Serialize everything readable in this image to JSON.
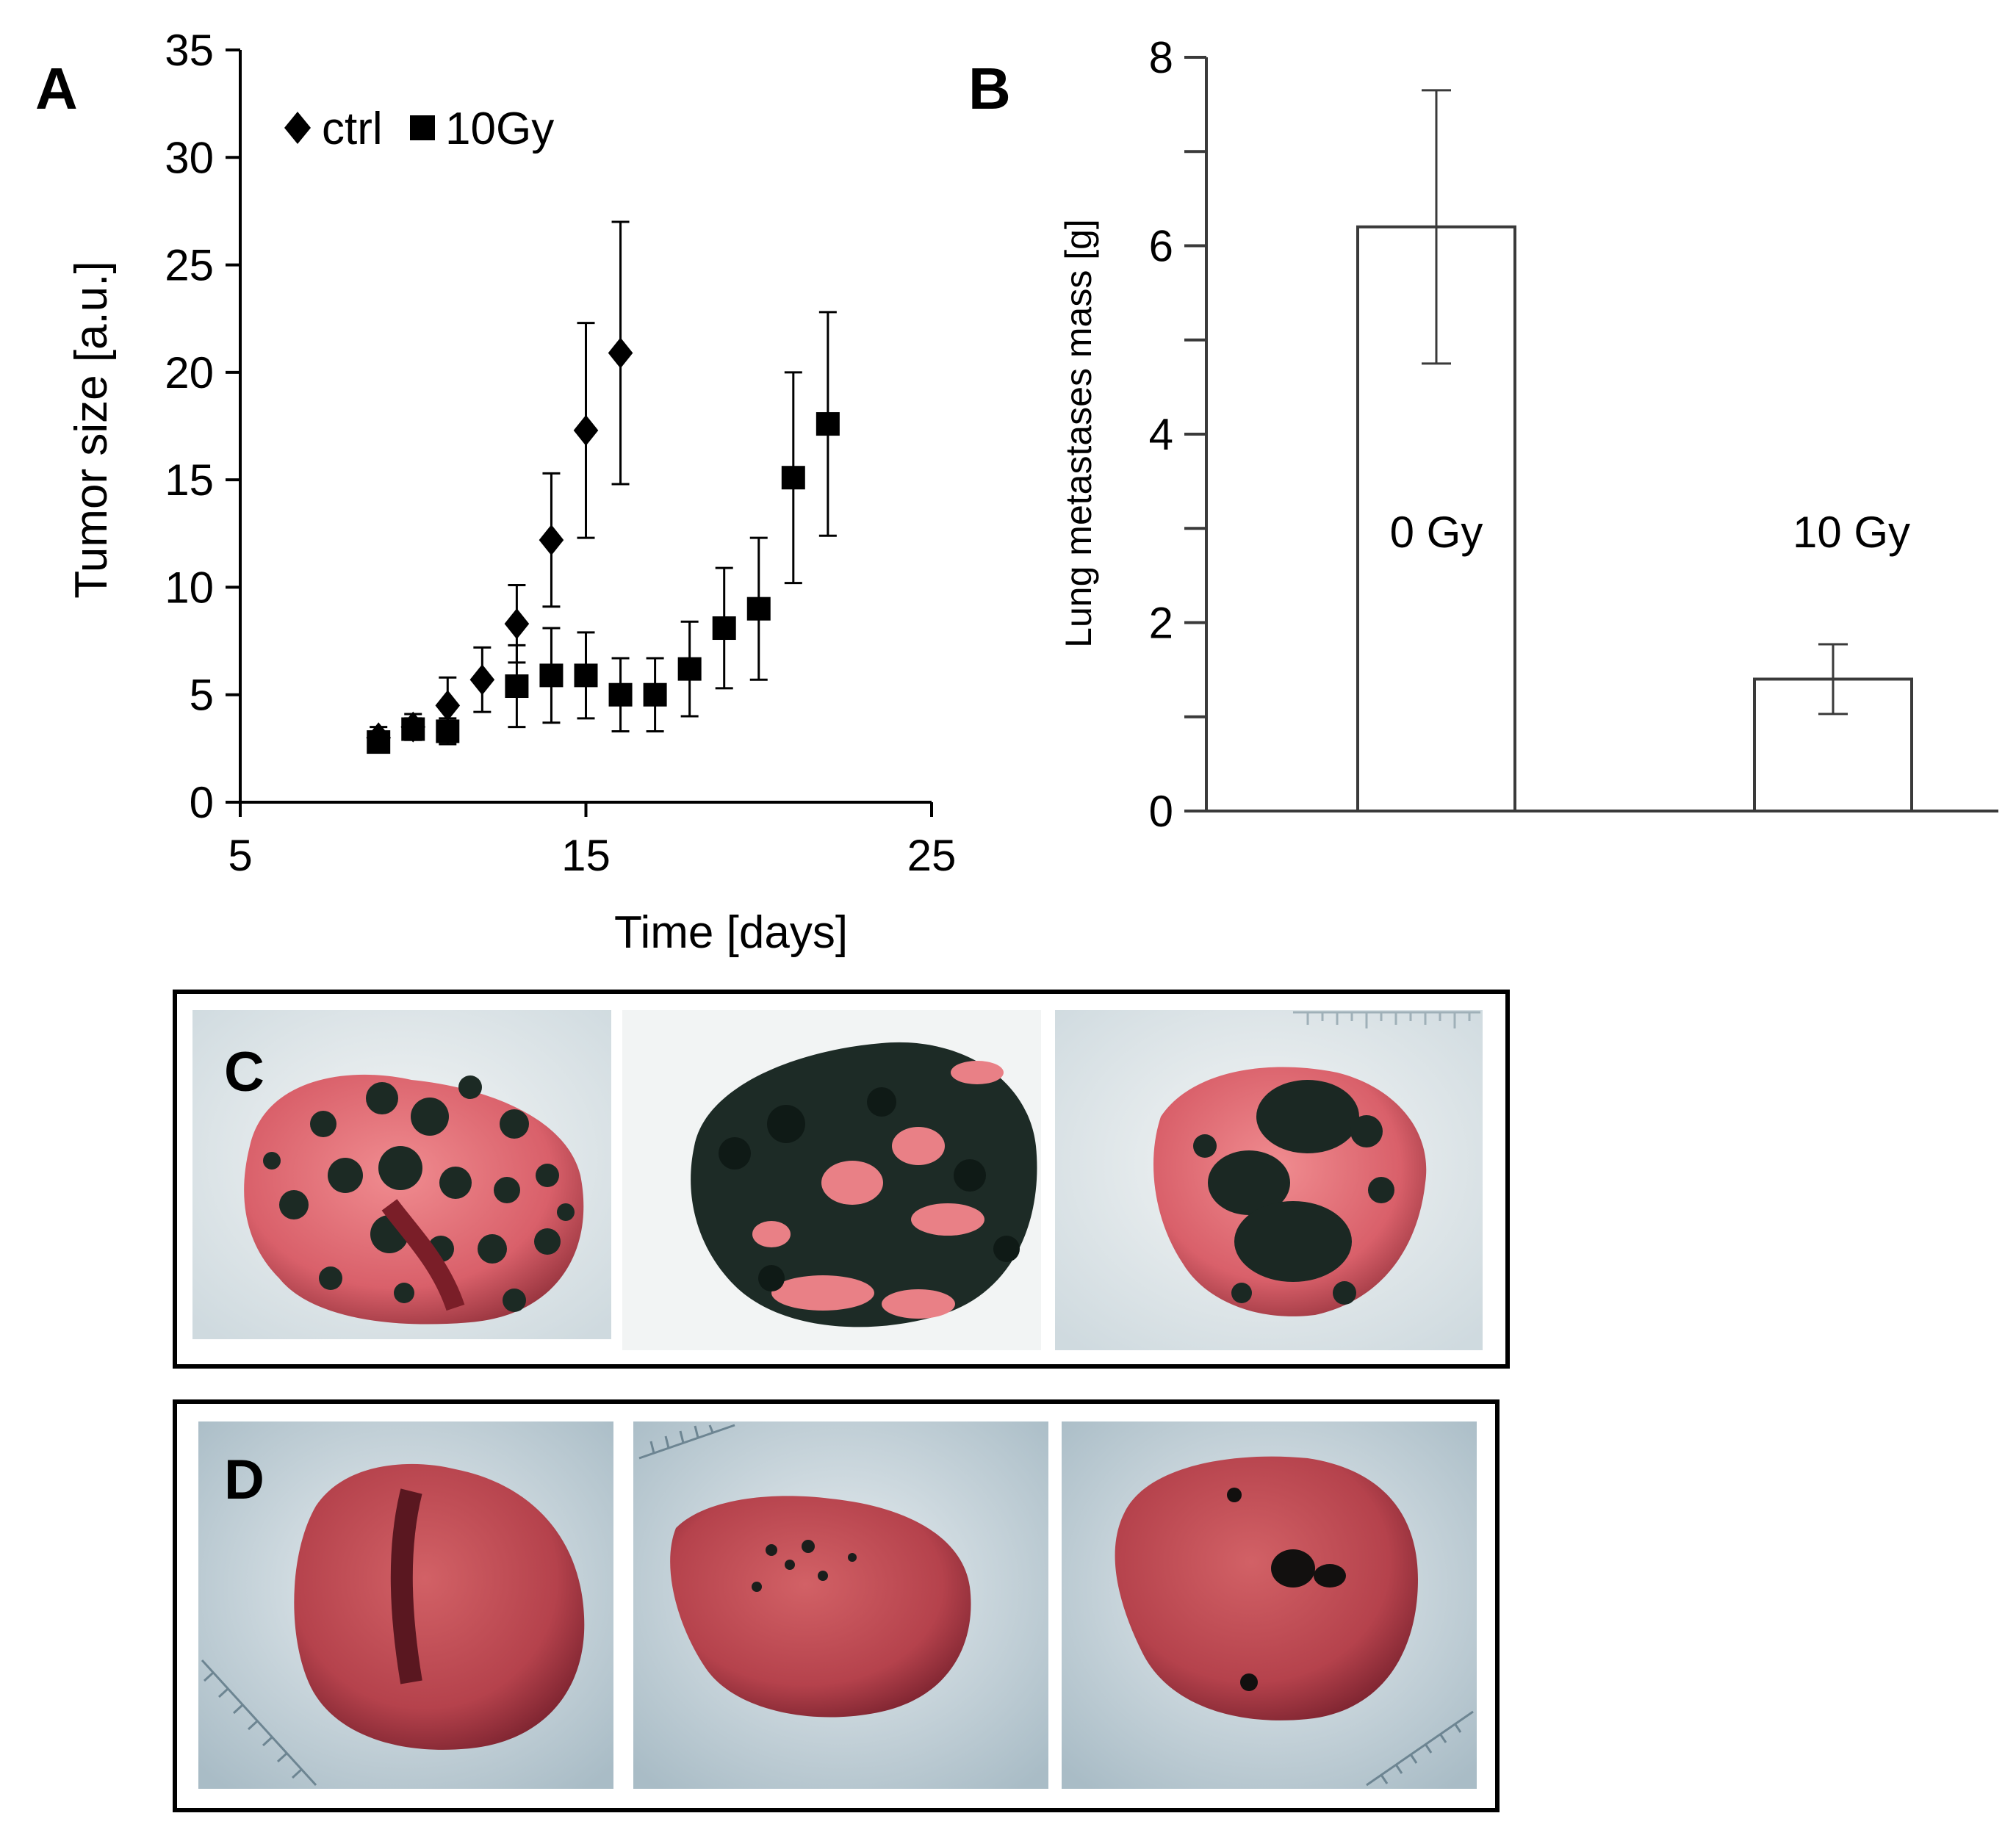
{
  "chart_data": [
    {
      "panel": "A",
      "type": "scatter",
      "xlabel": "Time [days]",
      "ylabel": "Tumor size [a.u.]",
      "xlim": [
        5,
        25
      ],
      "ylim": [
        0,
        35
      ],
      "xticks": [
        5,
        15,
        25
      ],
      "yticks": [
        0,
        5,
        10,
        15,
        20,
        25,
        30,
        35
      ],
      "legend": "top-left",
      "series": [
        {
          "name": "ctrl",
          "marker": "diamond",
          "x": [
            9,
            10,
            11,
            12,
            13,
            14,
            15,
            16
          ],
          "y": [
            3.0,
            3.5,
            4.5,
            5.7,
            8.3,
            12.2,
            17.3,
            20.9
          ],
          "err": [
            0.5,
            0.6,
            1.3,
            1.5,
            1.8,
            3.1,
            5.0,
            6.1
          ]
        },
        {
          "name": "10Gy",
          "marker": "square",
          "x": [
            9,
            10,
            11,
            13,
            14,
            15,
            16,
            17,
            18,
            19,
            20,
            21,
            22
          ],
          "y": [
            2.8,
            3.4,
            3.3,
            5.4,
            5.9,
            5.9,
            5.0,
            5.0,
            6.2,
            8.1,
            9.0,
            15.1,
            17.6
          ],
          "err": [
            0.4,
            0.5,
            0.6,
            1.9,
            2.2,
            2.0,
            1.7,
            1.7,
            2.2,
            2.8,
            3.3,
            4.9,
            5.2
          ]
        }
      ]
    },
    {
      "panel": "B",
      "type": "bar",
      "categories": [
        "0 Gy",
        "10 Gy"
      ],
      "values": [
        6.2,
        1.4
      ],
      "err": [
        1.45,
        0.37
      ],
      "ylabel": "Lung metastases mass [g]",
      "xlabel": "",
      "ylim": [
        0,
        8
      ],
      "yticks": [
        0,
        2,
        4,
        6,
        8
      ]
    }
  ],
  "panels": {
    "A": "A",
    "B": "B",
    "C": "C",
    "D": "D"
  },
  "colors": {
    "marker": "#000000",
    "bar_fill": "#ffffff",
    "bar_stroke": "#3a3a3a",
    "axis": "#000000",
    "tissue": "#d9606a",
    "tissue_dark": "#8e2a34",
    "metastasis": "#1c2a24",
    "photo_bg": "#dde6ea"
  }
}
